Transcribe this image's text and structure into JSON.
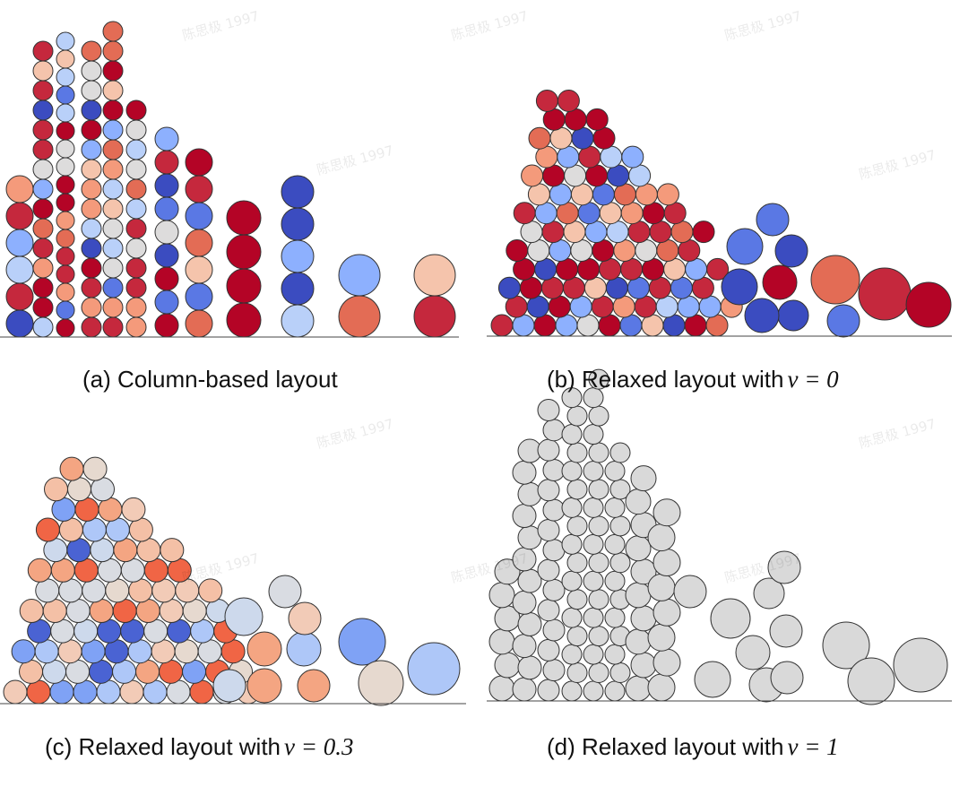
{
  "panels": [
    {
      "caption": "(a) Column-based layout"
    },
    {
      "caption": "(b) Relaxed layout with",
      "math": "ν = 0"
    },
    {
      "caption": "(c) Relaxed layout with",
      "math": "ν = 0.3"
    },
    {
      "caption": "(d) Relaxed layout with",
      "math": "ν = 1"
    }
  ],
  "watermark": "陈思极 1997"
}
